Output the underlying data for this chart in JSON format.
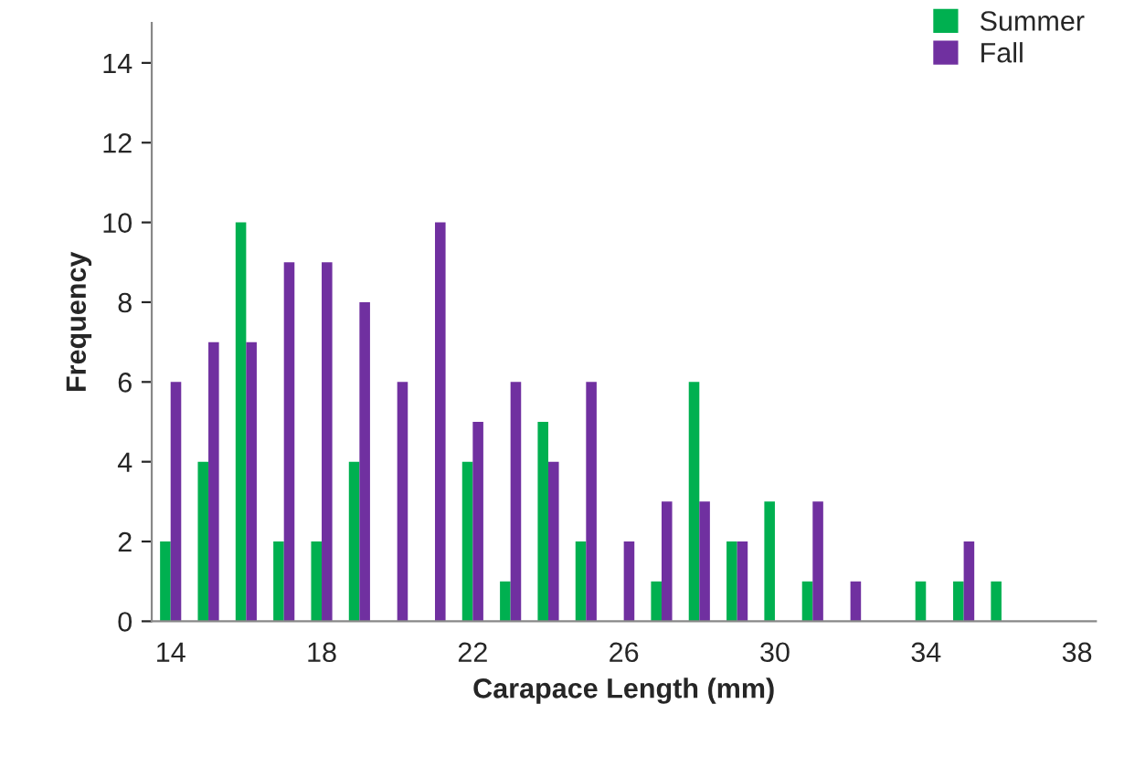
{
  "chart_data": {
    "type": "bar",
    "xlabel": "Carapace Length (mm)",
    "ylabel": "Frequency",
    "categories": [
      "14",
      null,
      null,
      null,
      "18",
      null,
      null,
      null,
      "22",
      null,
      null,
      null,
      "26",
      null,
      null,
      null,
      "30",
      null,
      null,
      null,
      "34",
      null,
      null,
      null,
      "38"
    ],
    "series": [
      {
        "name": "Summer",
        "color": "#00b050",
        "values": [
          2,
          4,
          10,
          2,
          2,
          4,
          0,
          0,
          4,
          1,
          5,
          2,
          0,
          1,
          6,
          2,
          3,
          1,
          0,
          0,
          1,
          1,
          1,
          0,
          0
        ]
      },
      {
        "name": "Fall",
        "color": "#7030a0",
        "values": [
          6,
          7,
          7,
          9,
          9,
          8,
          6,
          10,
          5,
          6,
          4,
          6,
          2,
          3,
          3,
          2,
          0,
          3,
          1,
          0,
          0,
          2,
          0,
          0,
          0
        ]
      }
    ],
    "ylim": [
      0,
      15
    ],
    "yticks": [
      0,
      2,
      4,
      6,
      8,
      10,
      12,
      14
    ],
    "grid": false,
    "legend": "top right"
  }
}
